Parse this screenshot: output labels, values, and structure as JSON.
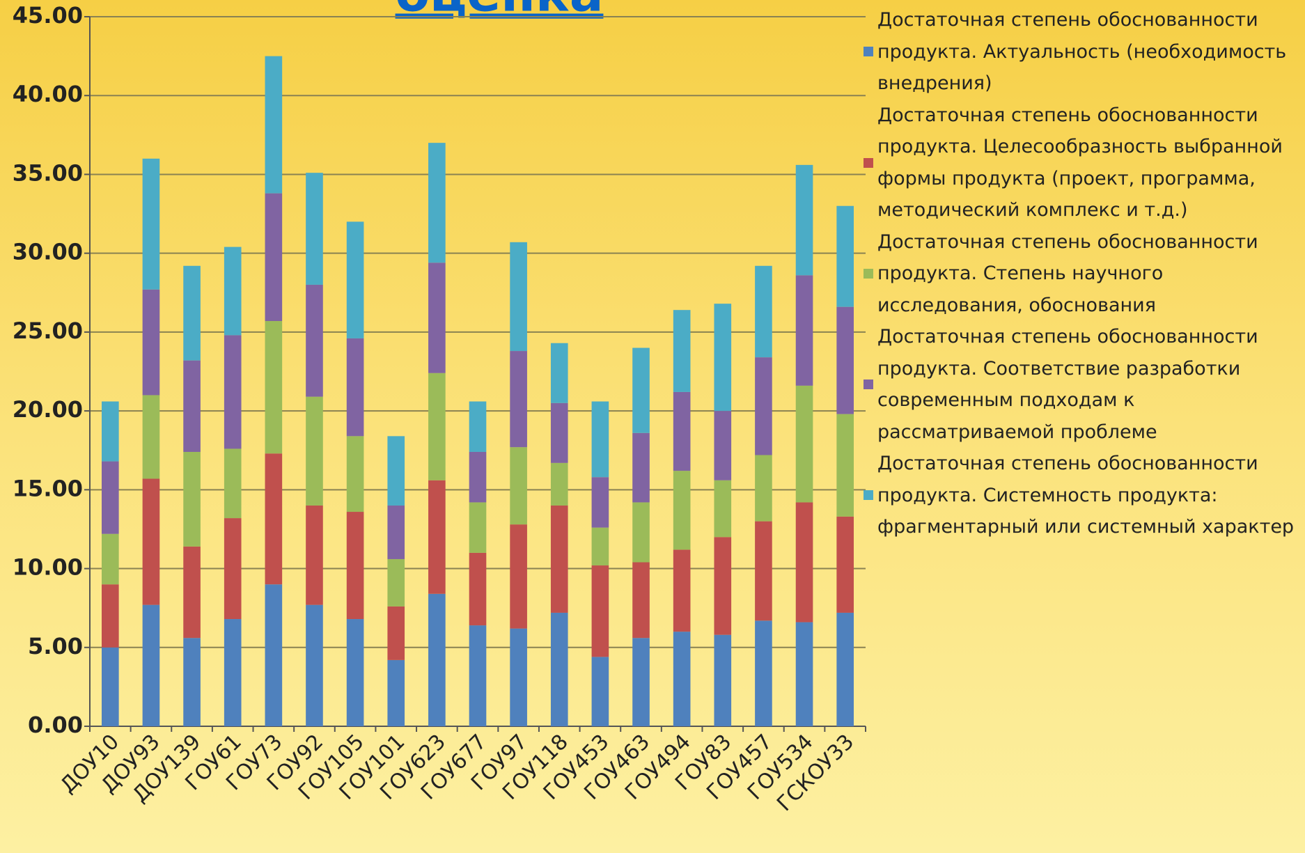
{
  "chart_data": {
    "type": "bar",
    "stacked": true,
    "title": "оценка",
    "categories": [
      "ДОУ10",
      "ДОУ93",
      "ДОУ139",
      "ГОУ61",
      "ГОУ73",
      "ГОУ92",
      "ГОУ105",
      "ГОУ101",
      "ГОУ623",
      "ГОУ677",
      "ГОУ97",
      "ГОУ118",
      "ГОУ453",
      "ГОУ463",
      "ГОУ494",
      "ГОУ83",
      "ГОУ457",
      "ГОУ534",
      "ГСКОУ33"
    ],
    "series": [
      {
        "name": "Достаточная степень обоснованности продукта. Актуальность (необходимость внедрения)",
        "color": "#4f81bd",
        "values": [
          5.0,
          7.7,
          5.6,
          6.8,
          9.0,
          7.7,
          6.8,
          4.2,
          8.4,
          6.4,
          6.2,
          7.2,
          4.4,
          5.6,
          6.0,
          5.8,
          6.7,
          6.6,
          7.2
        ]
      },
      {
        "name": "Достаточная степень обоснованности продукта. Целесообразность выбранной формы продукта (проект, программа, методический комплекс и т.д.)",
        "color": "#c0504d",
        "values": [
          4.0,
          8.0,
          5.8,
          6.4,
          8.3,
          6.3,
          6.8,
          3.4,
          7.2,
          4.6,
          6.6,
          6.8,
          5.8,
          4.8,
          5.2,
          6.2,
          6.3,
          7.6,
          6.1
        ]
      },
      {
        "name": "Достаточная степень обоснованности продукта. Степень научного исследования, обоснования",
        "color": "#9bbb59",
        "values": [
          3.2,
          5.3,
          6.0,
          4.4,
          8.4,
          6.9,
          4.8,
          3.0,
          6.8,
          3.2,
          4.9,
          2.7,
          2.4,
          3.8,
          5.0,
          3.6,
          4.2,
          7.4,
          6.5
        ]
      },
      {
        "name": "Достаточная степень обоснованности продукта. Соответствие разработки современным подходам к рассматриваемой проблеме",
        "color": "#8064a2",
        "values": [
          4.6,
          6.7,
          5.8,
          7.2,
          8.1,
          7.1,
          6.2,
          3.4,
          7.0,
          3.2,
          6.1,
          3.8,
          3.2,
          4.4,
          5.0,
          4.4,
          6.2,
          7.0,
          6.8
        ]
      },
      {
        "name": "Достаточная степень обоснованности продукта. Системность продукта: фрагментарный или системный характер",
        "color": "#4bacc6",
        "values": [
          3.8,
          8.3,
          6.0,
          5.6,
          8.7,
          7.1,
          7.4,
          4.4,
          7.6,
          3.2,
          6.9,
          3.8,
          4.8,
          5.4,
          5.2,
          6.8,
          5.8,
          7.0,
          6.4
        ]
      }
    ],
    "ylim": [
      0,
      45
    ],
    "yticks": [
      {
        "value": 0,
        "label": "0.00"
      },
      {
        "value": 5,
        "label": "5.00"
      },
      {
        "value": 10,
        "label": "10.00"
      },
      {
        "value": 15,
        "label": "15.00"
      },
      {
        "value": 20,
        "label": "20.00"
      },
      {
        "value": 25,
        "label": "25.00"
      },
      {
        "value": 30,
        "label": "30.00"
      },
      {
        "value": 35,
        "label": "35.00"
      },
      {
        "value": 40,
        "label": "40.00"
      },
      {
        "value": 45,
        "label": "45.00"
      }
    ],
    "grid": true,
    "legend": "right"
  }
}
